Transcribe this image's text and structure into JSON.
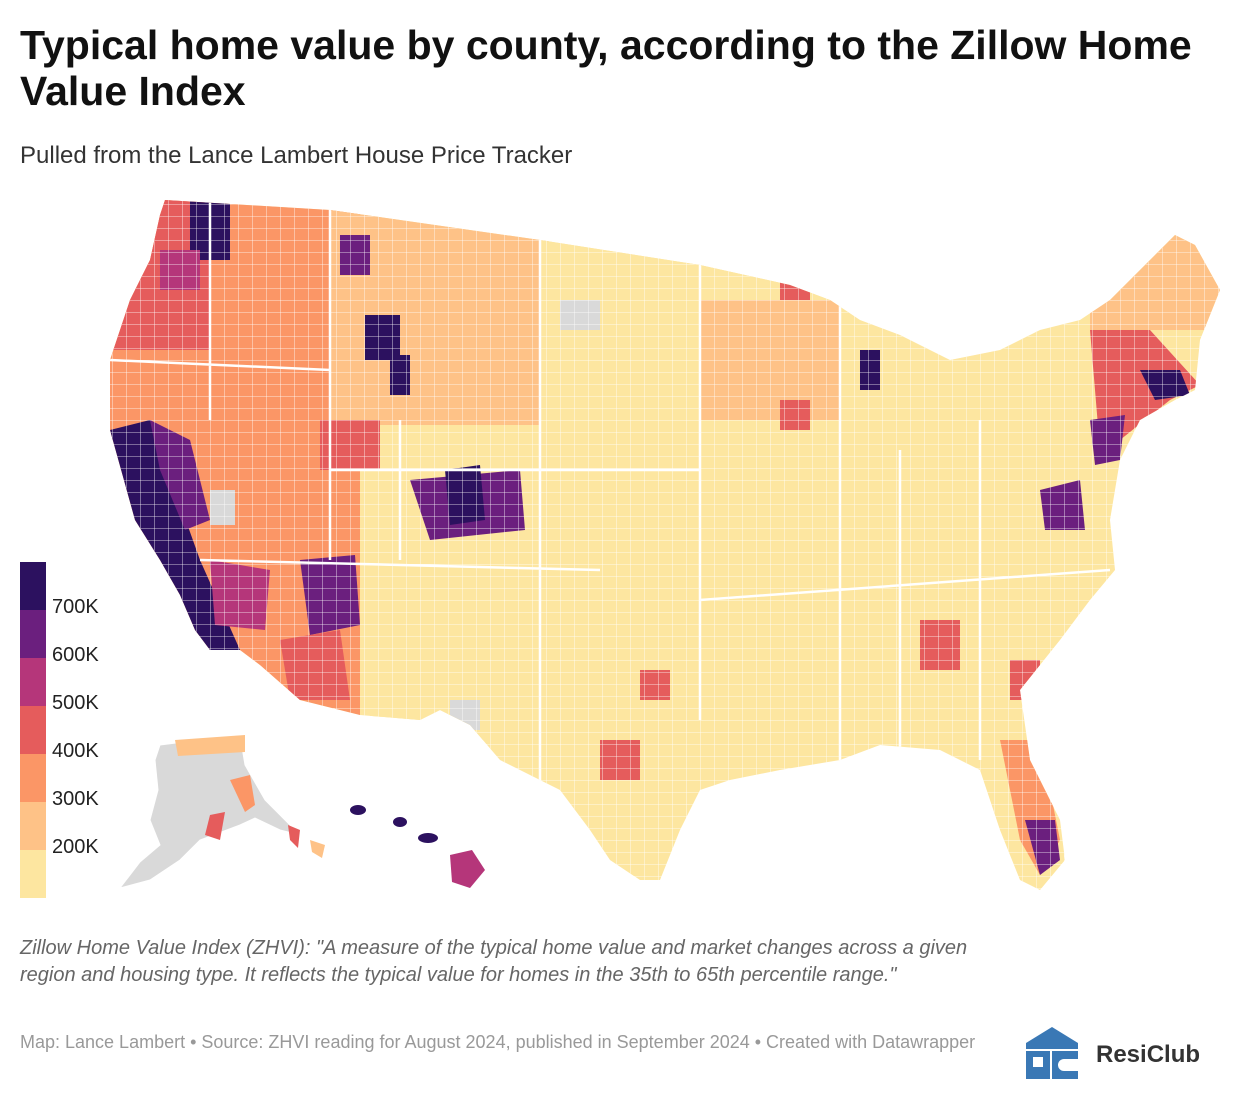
{
  "header": {
    "title": "Typical home value by county, according to the Zillow Home Value Index",
    "subtitle": "Pulled from the Lance Lambert House Price Tracker"
  },
  "legend": {
    "labels": [
      "700K",
      "600K",
      "500K",
      "400K",
      "300K",
      "200K"
    ],
    "colors": [
      "#2c115f",
      "#6b1f7e",
      "#b5367a",
      "#e55c5c",
      "#fb9666",
      "#fec287",
      "#fde6a0"
    ]
  },
  "colors": {
    "no_data": "#d9d9d9",
    "borders": "#ffffff"
  },
  "footer": {
    "note": "Zillow Home Value Index (ZHVI): \"A measure of the typical home value and market changes across a given region and housing type. It reflects the typical value for homes in the 35th to 65th percentile range.\"",
    "byline": "Map: Lance Lambert • Source: ZHVI reading for August 2024, published in September 2024 • Created with Datawrapper",
    "brand": "ResiClub"
  }
}
